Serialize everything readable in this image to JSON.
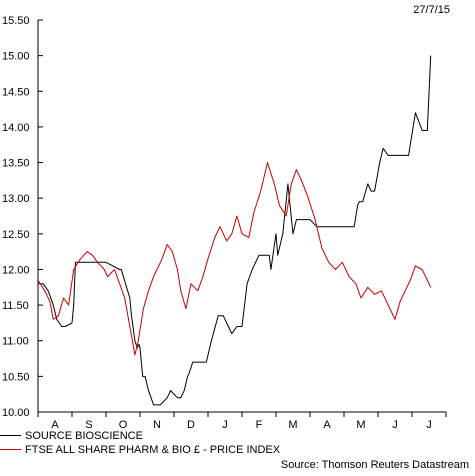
{
  "date_label": "27/7/15",
  "source": "Source: Thomson Reuters Datastream",
  "colors": {
    "series_1": "#000000",
    "series_2": "#cc0000",
    "axis": "#000000"
  },
  "chart_data": {
    "type": "line",
    "title": "",
    "xlabel": "",
    "ylabel": "",
    "ylim": [
      10.0,
      15.5
    ],
    "yticks": [
      "10.00",
      "10.50",
      "11.00",
      "11.50",
      "12.00",
      "12.50",
      "13.00",
      "13.50",
      "14.00",
      "14.50",
      "15.00",
      "15.50"
    ],
    "x_categories": [
      "A",
      "S",
      "O",
      "N",
      "D",
      "J",
      "F",
      "M",
      "A",
      "M",
      "J",
      "J"
    ],
    "grid": false,
    "legend_position": "bottom-left",
    "series": [
      {
        "name": "SOURCE BIOSCIENCE",
        "color": "#000000",
        "x": [
          0,
          0.15,
          0.3,
          0.45,
          0.55,
          0.7,
          0.8,
          1.0,
          1.05,
          1.1,
          2.0,
          2.4,
          2.45,
          2.7,
          2.75,
          2.85,
          2.92,
          2.97,
          3.0,
          3.08,
          3.15,
          3.25,
          3.4,
          3.6,
          3.8,
          3.9,
          4.1,
          4.2,
          4.3,
          4.4,
          4.45,
          4.55,
          4.7,
          4.95,
          5.1,
          5.3,
          5.45,
          5.6,
          5.7,
          5.85,
          6.0,
          6.15,
          6.3,
          6.5,
          6.7,
          6.8,
          6.85,
          7.0,
          7.05,
          7.2,
          7.35,
          7.5,
          7.6,
          7.8,
          8.0,
          8.2,
          8.5,
          8.8,
          9.0,
          9.3,
          9.4,
          9.45,
          9.55,
          9.7,
          9.8,
          9.9,
          10.05,
          10.15,
          10.3,
          10.5,
          10.9,
          11.1,
          11.3,
          11.45,
          11.55
        ],
        "values": [
          11.8,
          11.8,
          11.7,
          11.5,
          11.3,
          11.2,
          11.2,
          11.25,
          11.5,
          12.1,
          12.1,
          12.0,
          12.0,
          11.6,
          11.35,
          11.0,
          10.9,
          10.95,
          10.9,
          10.5,
          10.5,
          10.3,
          10.1,
          10.1,
          10.2,
          10.3,
          10.2,
          10.2,
          10.3,
          10.5,
          10.55,
          10.7,
          10.7,
          10.7,
          11.0,
          11.35,
          11.35,
          11.2,
          11.1,
          11.2,
          11.2,
          11.8,
          12.0,
          12.2,
          12.2,
          12.2,
          12.0,
          12.5,
          12.2,
          12.5,
          13.2,
          12.5,
          12.7,
          12.7,
          12.7,
          12.6,
          12.6,
          12.6,
          12.6,
          12.6,
          12.9,
          12.95,
          12.95,
          13.2,
          13.1,
          13.1,
          13.5,
          13.7,
          13.6,
          13.6,
          13.6,
          14.2,
          13.95,
          13.95,
          15.0
        ]
      },
      {
        "name": "FTSE ALL SHARE PHARM & BIO £ - PRICE INDEX",
        "color": "#cc0000",
        "x": [
          0,
          0.2,
          0.35,
          0.45,
          0.6,
          0.75,
          0.9,
          1.05,
          1.25,
          1.45,
          1.6,
          1.75,
          1.95,
          2.05,
          2.25,
          2.4,
          2.55,
          2.7,
          2.85,
          2.95,
          3.1,
          3.25,
          3.4,
          3.5,
          3.65,
          3.8,
          3.95,
          4.1,
          4.2,
          4.35,
          4.5,
          4.7,
          4.85,
          5.0,
          5.2,
          5.35,
          5.55,
          5.7,
          5.85,
          6.0,
          6.2,
          6.35,
          6.55,
          6.75,
          6.95,
          7.1,
          7.3,
          7.45,
          7.6,
          7.75,
          7.95,
          8.15,
          8.35,
          8.55,
          8.75,
          8.95,
          9.15,
          9.35,
          9.5,
          9.7,
          9.9,
          10.1,
          10.3,
          10.5,
          10.65,
          10.8,
          10.95,
          11.1,
          11.3,
          11.45,
          11.55
        ],
        "values": [
          11.85,
          11.7,
          11.55,
          11.3,
          11.35,
          11.6,
          11.5,
          12.0,
          12.15,
          12.25,
          12.2,
          12.1,
          12.0,
          11.9,
          12.0,
          11.8,
          11.6,
          11.2,
          10.8,
          11.0,
          11.45,
          11.7,
          11.9,
          12.0,
          12.15,
          12.35,
          12.25,
          12.0,
          11.7,
          11.45,
          11.8,
          11.7,
          11.9,
          12.15,
          12.45,
          12.6,
          12.4,
          12.5,
          12.75,
          12.5,
          12.45,
          12.8,
          13.1,
          13.5,
          13.2,
          12.9,
          12.75,
          13.2,
          13.4,
          13.25,
          13.0,
          12.7,
          12.3,
          12.1,
          12.0,
          12.1,
          11.9,
          11.8,
          11.6,
          11.75,
          11.65,
          11.7,
          11.5,
          11.3,
          11.55,
          11.7,
          11.85,
          12.05,
          12.0,
          11.85,
          11.75
        ]
      }
    ]
  }
}
